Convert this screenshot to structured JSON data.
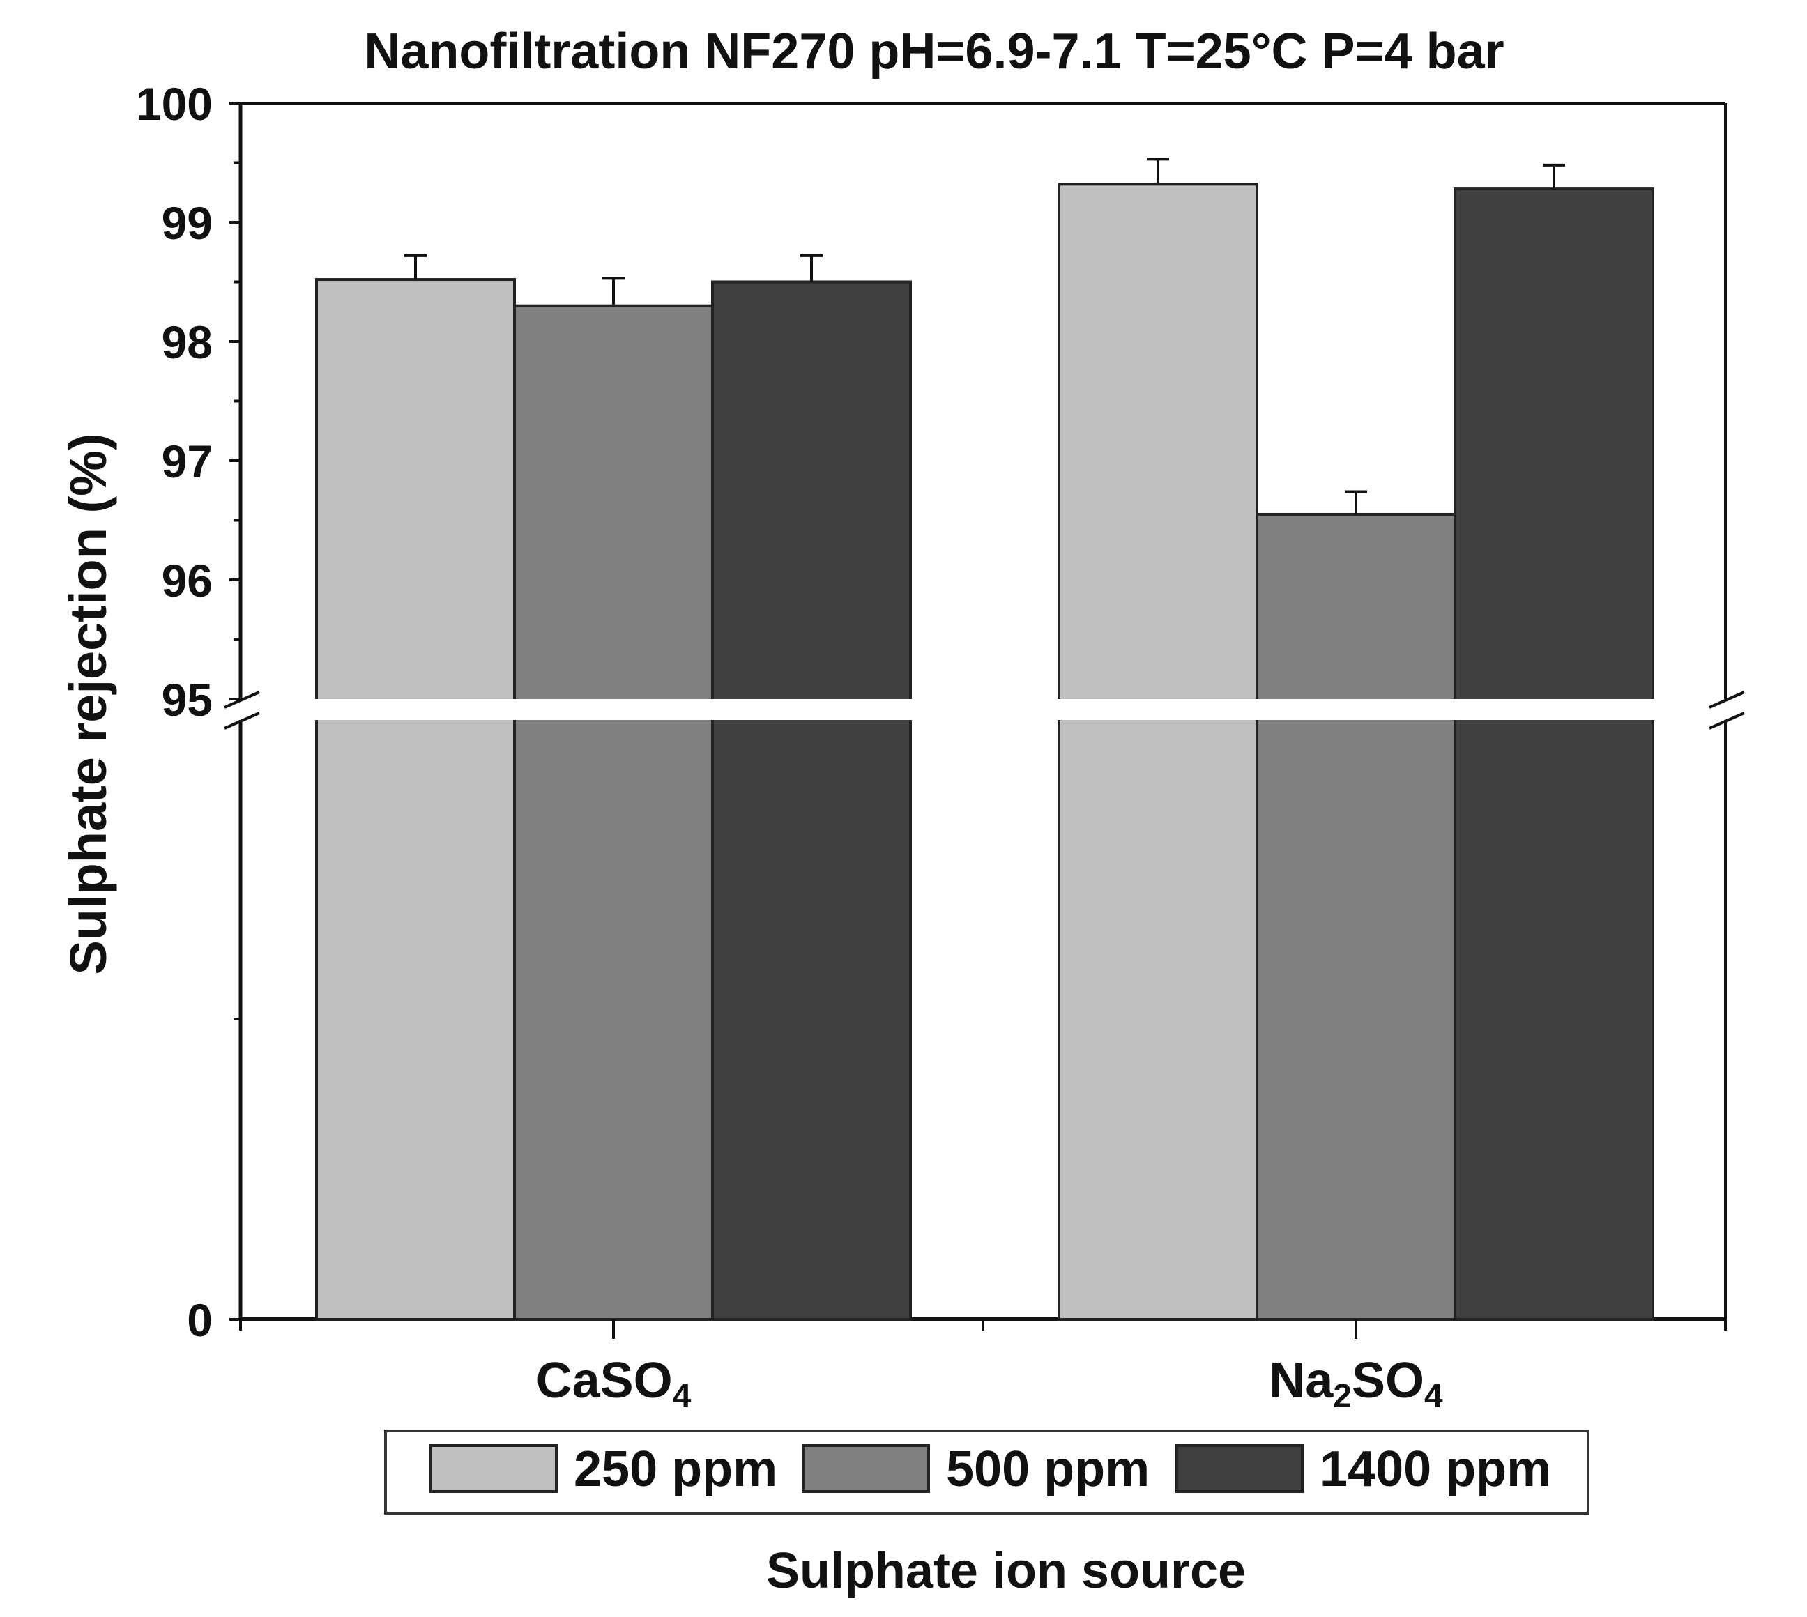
{
  "chart_data": {
    "type": "bar",
    "title": "Nanofiltration NF270 pH=6.9-7.1 T=25°C P=4 bar",
    "xlabel": "Sulphate ion source",
    "ylabel": "Sulphate rejection (%)",
    "categories": [
      {
        "base": "CaSO",
        "sub": "4",
        "pre": "",
        "presub": ""
      },
      {
        "base": "SO",
        "sub": "4",
        "pre": "Na",
        "presub": "2"
      }
    ],
    "category_labels": [
      "CaSO4",
      "Na2SO4"
    ],
    "series": [
      {
        "name": "250 ppm",
        "color": "#c0c0c0",
        "values": [
          98.52,
          99.32
        ],
        "errors": [
          0.2,
          0.21
        ]
      },
      {
        "name": "500 ppm",
        "color": "#808080",
        "values": [
          98.3,
          96.55
        ],
        "errors": [
          0.23,
          0.19
        ]
      },
      {
        "name": "1400 ppm",
        "color": "#404040",
        "values": [
          98.5,
          99.28
        ],
        "errors": [
          0.22,
          0.2
        ]
      }
    ],
    "yaxis": {
      "lower_segment": [
        0,
        95
      ],
      "upper_segment": [
        95,
        100
      ],
      "ticks_upper": [
        95,
        96,
        97,
        98,
        99,
        100
      ],
      "ticks_lower": [
        0
      ],
      "tick_labels": [
        "0",
        "95",
        "96",
        "97",
        "98",
        "99",
        "100"
      ],
      "axis_break": true
    },
    "legend": {
      "position": "bottom-center",
      "entries": [
        "250 ppm",
        "500 ppm",
        "1400 ppm"
      ]
    },
    "grid": false
  }
}
